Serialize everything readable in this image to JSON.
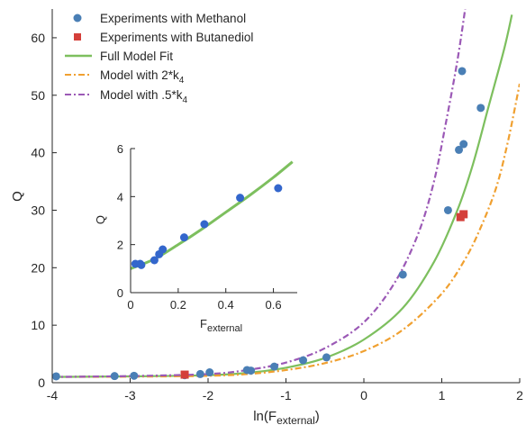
{
  "chart_data": [
    {
      "type": "scatter",
      "xlabel": "ln(F",
      "xlabel_sub": "external",
      "xlabel_close": ")",
      "ylabel": "Q",
      "xlim": [
        -4,
        2
      ],
      "ylim": [
        0,
        65
      ],
      "xticks": [
        -4,
        -3,
        -2,
        -1,
        0,
        1,
        2
      ],
      "yticks": [
        0,
        10,
        20,
        30,
        40,
        50,
        60
      ],
      "grid": false,
      "legend": {
        "position": "top-left",
        "entries": [
          {
            "label": "Experiments with Methanol",
            "marker": "circle",
            "color": "#4a7fb5"
          },
          {
            "label": "Experiments with Butanediol",
            "marker": "square",
            "color": "#d43f3a"
          },
          {
            "label": "Full Model Fit",
            "line": "solid",
            "color": "#7dbf5e"
          },
          {
            "label": "Model with 2*k",
            "sub": "4",
            "line": "dashdot",
            "color": "#f0a030"
          },
          {
            "label": "Model with .5*k",
            "sub": "4",
            "line": "dashdot",
            "color": "#9b59b6"
          }
        ]
      },
      "series": [
        {
          "name": "Experiments with Methanol",
          "kind": "scatter",
          "marker": "circle",
          "color": "#4a7fb5",
          "points": [
            [
              -3.95,
              1.1
            ],
            [
              -3.2,
              1.15
            ],
            [
              -2.95,
              1.2
            ],
            [
              -2.3,
              1.3
            ],
            [
              -2.1,
              1.5
            ],
            [
              -1.98,
              1.8
            ],
            [
              -1.5,
              2.2
            ],
            [
              -1.45,
              2.1
            ],
            [
              -1.15,
              2.8
            ],
            [
              -0.78,
              3.9
            ],
            [
              -0.48,
              4.4
            ],
            [
              0.5,
              18.8
            ],
            [
              1.08,
              30.0
            ],
            [
              1.22,
              40.5
            ],
            [
              1.26,
              54.2
            ],
            [
              1.28,
              41.5
            ],
            [
              1.5,
              47.8
            ]
          ]
        },
        {
          "name": "Experiments with Butanediol",
          "kind": "scatter",
          "marker": "square",
          "color": "#d43f3a",
          "points": [
            [
              -2.3,
              1.4
            ],
            [
              1.24,
              28.8
            ],
            [
              1.28,
              29.3
            ]
          ]
        },
        {
          "name": "Full Model Fit",
          "kind": "line",
          "style": "solid",
          "color": "#7dbf5e",
          "points": [
            [
              -4,
              1.0
            ],
            [
              -3,
              1.1
            ],
            [
              -2,
              1.3
            ],
            [
              -1.5,
              1.7
            ],
            [
              -1,
              2.6
            ],
            [
              -0.5,
              4.3
            ],
            [
              0,
              7.5
            ],
            [
              0.5,
              13.0
            ],
            [
              0.9,
              21.0
            ],
            [
              1.2,
              30.0
            ],
            [
              1.4,
              38.0
            ],
            [
              1.6,
              48.0
            ],
            [
              1.8,
              58.0
            ],
            [
              1.9,
              64.0
            ]
          ]
        },
        {
          "name": "Model with 2*k4",
          "kind": "line",
          "style": "dashdot",
          "color": "#f0a030",
          "points": [
            [
              -4,
              1.0
            ],
            [
              -3,
              1.05
            ],
            [
              -2,
              1.2
            ],
            [
              -1.5,
              1.5
            ],
            [
              -1,
              2.2
            ],
            [
              -0.5,
              3.4
            ],
            [
              0,
              5.5
            ],
            [
              0.5,
              9.2
            ],
            [
              1.0,
              15.5
            ],
            [
              1.3,
              21.5
            ],
            [
              1.5,
              27.0
            ],
            [
              1.7,
              34.0
            ],
            [
              1.85,
              42.0
            ],
            [
              2.0,
              52.0
            ]
          ]
        },
        {
          "name": "Model with .5*k4",
          "kind": "line",
          "style": "dashdot",
          "color": "#9b59b6",
          "points": [
            [
              -4,
              1.0
            ],
            [
              -3,
              1.15
            ],
            [
              -2,
              1.5
            ],
            [
              -1.5,
              2.2
            ],
            [
              -1,
              3.5
            ],
            [
              -0.5,
              6.0
            ],
            [
              0,
              10.5
            ],
            [
              0.4,
              17.5
            ],
            [
              0.7,
              26.0
            ],
            [
              0.9,
              35.0
            ],
            [
              1.05,
              45.0
            ],
            [
              1.2,
              56.0
            ],
            [
              1.3,
              65.0
            ]
          ]
        }
      ]
    },
    {
      "type": "scatter",
      "inset": true,
      "xlabel": "F",
      "xlabel_sub": "external",
      "ylabel": "Q",
      "xlim": [
        0,
        0.7
      ],
      "ylim": [
        0,
        6
      ],
      "xticks": [
        0,
        0.2,
        0.4,
        0.6
      ],
      "yticks": [
        0,
        2,
        4,
        6
      ],
      "grid": false,
      "series": [
        {
          "name": "Experiments with Methanol",
          "kind": "scatter",
          "marker": "circle",
          "color": "#3366cc",
          "points": [
            [
              0.02,
              1.2
            ],
            [
              0.04,
              1.2
            ],
            [
              0.045,
              1.15
            ],
            [
              0.1,
              1.35
            ],
            [
              0.12,
              1.6
            ],
            [
              0.135,
              1.8
            ],
            [
              0.225,
              2.3
            ],
            [
              0.31,
              2.85
            ],
            [
              0.46,
              3.95
            ],
            [
              0.62,
              4.35
            ]
          ]
        },
        {
          "name": "Full Model Fit",
          "kind": "line",
          "style": "solid",
          "color": "#7dbf5e",
          "points": [
            [
              0,
              1.0
            ],
            [
              0.1,
              1.4
            ],
            [
              0.2,
              2.0
            ],
            [
              0.3,
              2.65
            ],
            [
              0.4,
              3.35
            ],
            [
              0.5,
              4.05
            ],
            [
              0.6,
              4.8
            ],
            [
              0.68,
              5.45
            ]
          ]
        }
      ]
    }
  ]
}
